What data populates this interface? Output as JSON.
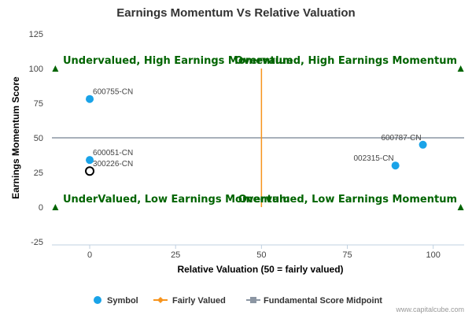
{
  "chart_data": {
    "type": "scatter",
    "title": "Earnings Momentum Vs Relative Valuation",
    "xlabel": "Relative Valuation (50 = fairly valued)",
    "ylabel": "Earnings Momentum Score",
    "xlim": [
      -11,
      109
    ],
    "ylim": [
      -25,
      125
    ],
    "xticks": [
      0,
      25,
      50,
      75,
      100
    ],
    "yticks": [
      -25,
      0,
      25,
      50,
      75,
      100,
      125
    ],
    "grid": false,
    "legend_position": "bottom",
    "series": [
      {
        "name": "Symbol",
        "color": "#1aa3e8",
        "points": [
          {
            "label": "600755-CN",
            "x": 0,
            "y": 78
          },
          {
            "label": "600051-CN",
            "x": 0,
            "y": 34
          },
          {
            "label": "300226-CN",
            "x": 0,
            "y": 26,
            "hollow": true
          },
          {
            "label": "600787-CN",
            "x": 97,
            "y": 45
          },
          {
            "label": "002315-CN",
            "x": 89,
            "y": 30
          }
        ]
      },
      {
        "name": "Fairly Valued",
        "color": "#f7941d",
        "x_value": 50
      },
      {
        "name": "Fundamental Score Midpoint",
        "color": "#8c96a3",
        "y_value": 50
      }
    ],
    "quadrants": {
      "top_left": "Undervalued, High Earnings Momentum",
      "top_right": "Overvalued, High Earnings Momentum",
      "bottom_left": "UnderValued, Low Earnings Momentum",
      "bottom_right": "Overvalued, Low Earnings Momentum"
    },
    "quadrant_marker_color": "#006400"
  },
  "credit": "www.capitalcube.com"
}
